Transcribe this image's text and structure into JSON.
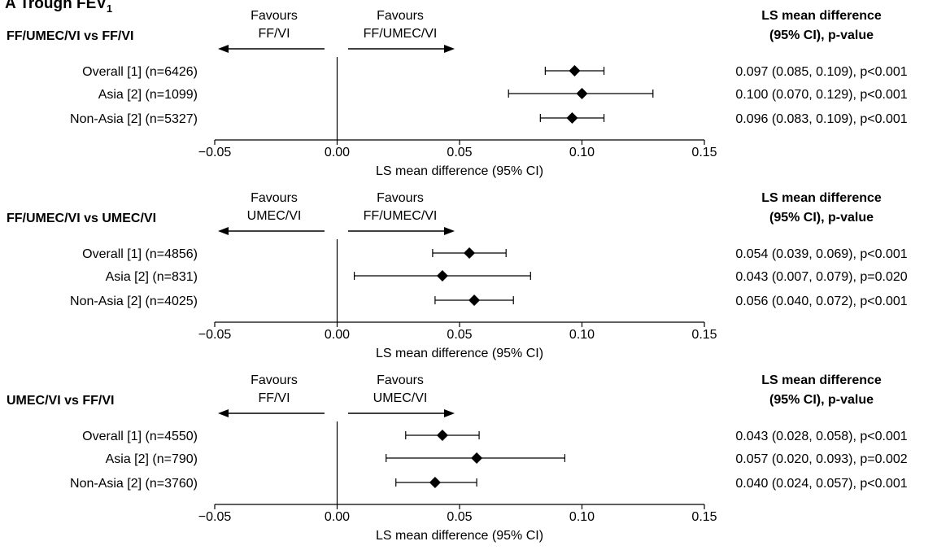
{
  "figure_title": {
    "prefix": "A",
    "main": "Trough FEV",
    "subscript": "1"
  },
  "chart_data": [
    {
      "type": "forest",
      "comparison": "FF/UMEC/VI vs FF/VI",
      "favours_left": [
        "Favours",
        "FF/VI"
      ],
      "favours_right": [
        "Favours",
        "FF/UMEC/VI"
      ],
      "result_header": [
        "LS mean difference",
        "(95% CI), p-value"
      ],
      "xlabel": "LS mean difference (95% CI)",
      "xlim": [
        -0.05,
        0.15
      ],
      "xticks": [
        "−0.05",
        "0.00",
        "0.05",
        "0.10",
        "0.15"
      ],
      "rows": [
        {
          "label": "Overall [1] (n=6426)",
          "estimate": 0.097,
          "lower": 0.085,
          "upper": 0.109,
          "result": "0.097 (0.085, 0.109), p<0.001"
        },
        {
          "label": "Asia [2] (n=1099)",
          "estimate": 0.1,
          "lower": 0.07,
          "upper": 0.129,
          "result": "0.100 (0.070, 0.129), p<0.001"
        },
        {
          "label": "Non-Asia [2] (n=5327)",
          "estimate": 0.096,
          "lower": 0.083,
          "upper": 0.109,
          "result": "0.096 (0.083, 0.109), p<0.001"
        }
      ]
    },
    {
      "type": "forest",
      "comparison": "FF/UMEC/VI vs UMEC/VI",
      "favours_left": [
        "Favours",
        "UMEC/VI"
      ],
      "favours_right": [
        "Favours",
        "FF/UMEC/VI"
      ],
      "result_header": [
        "LS mean difference",
        "(95% CI), p-value"
      ],
      "xlabel": "LS mean difference (95% CI)",
      "xlim": [
        -0.05,
        0.15
      ],
      "xticks": [
        "−0.05",
        "0.00",
        "0.05",
        "0.10",
        "0.15"
      ],
      "rows": [
        {
          "label": "Overall [1] (n=4856)",
          "estimate": 0.054,
          "lower": 0.039,
          "upper": 0.069,
          "result": "0.054 (0.039, 0.069), p<0.001"
        },
        {
          "label": "Asia [2] (n=831)",
          "estimate": 0.043,
          "lower": 0.007,
          "upper": 0.079,
          "result": "0.043 (0.007, 0.079), p=0.020"
        },
        {
          "label": "Non-Asia [2] (n=4025)",
          "estimate": 0.056,
          "lower": 0.04,
          "upper": 0.072,
          "result": "0.056 (0.040, 0.072), p<0.001"
        }
      ]
    },
    {
      "type": "forest",
      "comparison": "UMEC/VI vs FF/VI",
      "favours_left": [
        "Favours",
        "FF/VI"
      ],
      "favours_right": [
        "Favours",
        "UMEC/VI"
      ],
      "result_header": [
        "LS mean difference",
        "(95% CI), p-value"
      ],
      "xlabel": "LS mean difference (95% CI)",
      "xlim": [
        -0.05,
        0.15
      ],
      "xticks": [
        "−0.05",
        "0.00",
        "0.05",
        "0.10",
        "0.15"
      ],
      "rows": [
        {
          "label": "Overall [1] (n=4550)",
          "estimate": 0.043,
          "lower": 0.028,
          "upper": 0.058,
          "result": "0.043 (0.028, 0.058), p<0.001"
        },
        {
          "label": "Asia [2] (n=790)",
          "estimate": 0.057,
          "lower": 0.02,
          "upper": 0.093,
          "result": "0.057 (0.020, 0.093), p=0.002"
        },
        {
          "label": "Non-Asia [2] (n=3760)",
          "estimate": 0.04,
          "lower": 0.024,
          "upper": 0.057,
          "result": "0.040 (0.024, 0.057), p<0.001"
        }
      ]
    }
  ]
}
